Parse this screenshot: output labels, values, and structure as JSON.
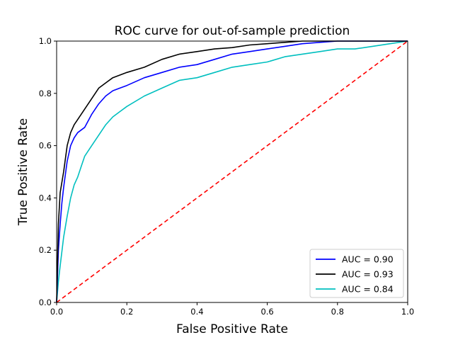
{
  "chart_data": {
    "type": "line",
    "title": "ROC curve for out-of-sample prediction",
    "xlabel": "False Positive Rate",
    "ylabel": "True Positive Rate",
    "xlim": [
      0,
      1
    ],
    "ylim": [
      0,
      1
    ],
    "xticks": [
      "0.0",
      "0.2",
      "0.4",
      "0.6",
      "0.8",
      "1.0"
    ],
    "yticks": [
      "0.0",
      "0.2",
      "0.4",
      "0.6",
      "0.8",
      "1.0"
    ],
    "grid": false,
    "legend_position": "lower-right",
    "series": [
      {
        "name": "AUC = 0.90",
        "color": "#0000ff",
        "x": [
          0,
          0.005,
          0.01,
          0.015,
          0.02,
          0.03,
          0.04,
          0.05,
          0.06,
          0.08,
          0.1,
          0.12,
          0.14,
          0.16,
          0.18,
          0.2,
          0.25,
          0.3,
          0.35,
          0.4,
          0.45,
          0.5,
          0.55,
          0.6,
          0.65,
          0.7,
          0.75,
          0.8,
          1.0
        ],
        "y": [
          0,
          0.2,
          0.3,
          0.38,
          0.44,
          0.54,
          0.6,
          0.63,
          0.65,
          0.67,
          0.72,
          0.76,
          0.79,
          0.81,
          0.82,
          0.83,
          0.86,
          0.88,
          0.9,
          0.91,
          0.93,
          0.95,
          0.96,
          0.97,
          0.98,
          0.99,
          0.995,
          1.0,
          1.0
        ]
      },
      {
        "name": "AUC = 0.93",
        "color": "#000000",
        "x": [
          0,
          0.005,
          0.01,
          0.02,
          0.03,
          0.04,
          0.05,
          0.06,
          0.08,
          0.1,
          0.12,
          0.14,
          0.16,
          0.18,
          0.2,
          0.25,
          0.3,
          0.35,
          0.4,
          0.45,
          0.5,
          0.55,
          0.6,
          0.65,
          0.7,
          0.75,
          1.0
        ],
        "y": [
          0,
          0.3,
          0.42,
          0.5,
          0.6,
          0.65,
          0.68,
          0.7,
          0.74,
          0.78,
          0.82,
          0.84,
          0.86,
          0.87,
          0.88,
          0.9,
          0.93,
          0.95,
          0.96,
          0.97,
          0.975,
          0.985,
          0.99,
          0.995,
          1.0,
          1.0,
          1.0
        ]
      },
      {
        "name": "AUC = 0.84",
        "color": "#00bfbf",
        "x": [
          0,
          0.005,
          0.01,
          0.02,
          0.03,
          0.04,
          0.05,
          0.06,
          0.07,
          0.08,
          0.1,
          0.12,
          0.14,
          0.16,
          0.18,
          0.2,
          0.25,
          0.3,
          0.35,
          0.4,
          0.45,
          0.5,
          0.55,
          0.6,
          0.65,
          0.7,
          0.75,
          0.8,
          0.85,
          0.9,
          0.95,
          1.0
        ],
        "y": [
          0,
          0.08,
          0.14,
          0.25,
          0.33,
          0.4,
          0.45,
          0.48,
          0.52,
          0.56,
          0.6,
          0.64,
          0.68,
          0.71,
          0.73,
          0.75,
          0.79,
          0.82,
          0.85,
          0.86,
          0.88,
          0.9,
          0.91,
          0.92,
          0.94,
          0.95,
          0.96,
          0.97,
          0.97,
          0.98,
          0.99,
          1.0
        ]
      },
      {
        "name": "",
        "color": "#ff0000",
        "dashed": true,
        "x": [
          0,
          1
        ],
        "y": [
          0,
          1
        ]
      }
    ]
  }
}
